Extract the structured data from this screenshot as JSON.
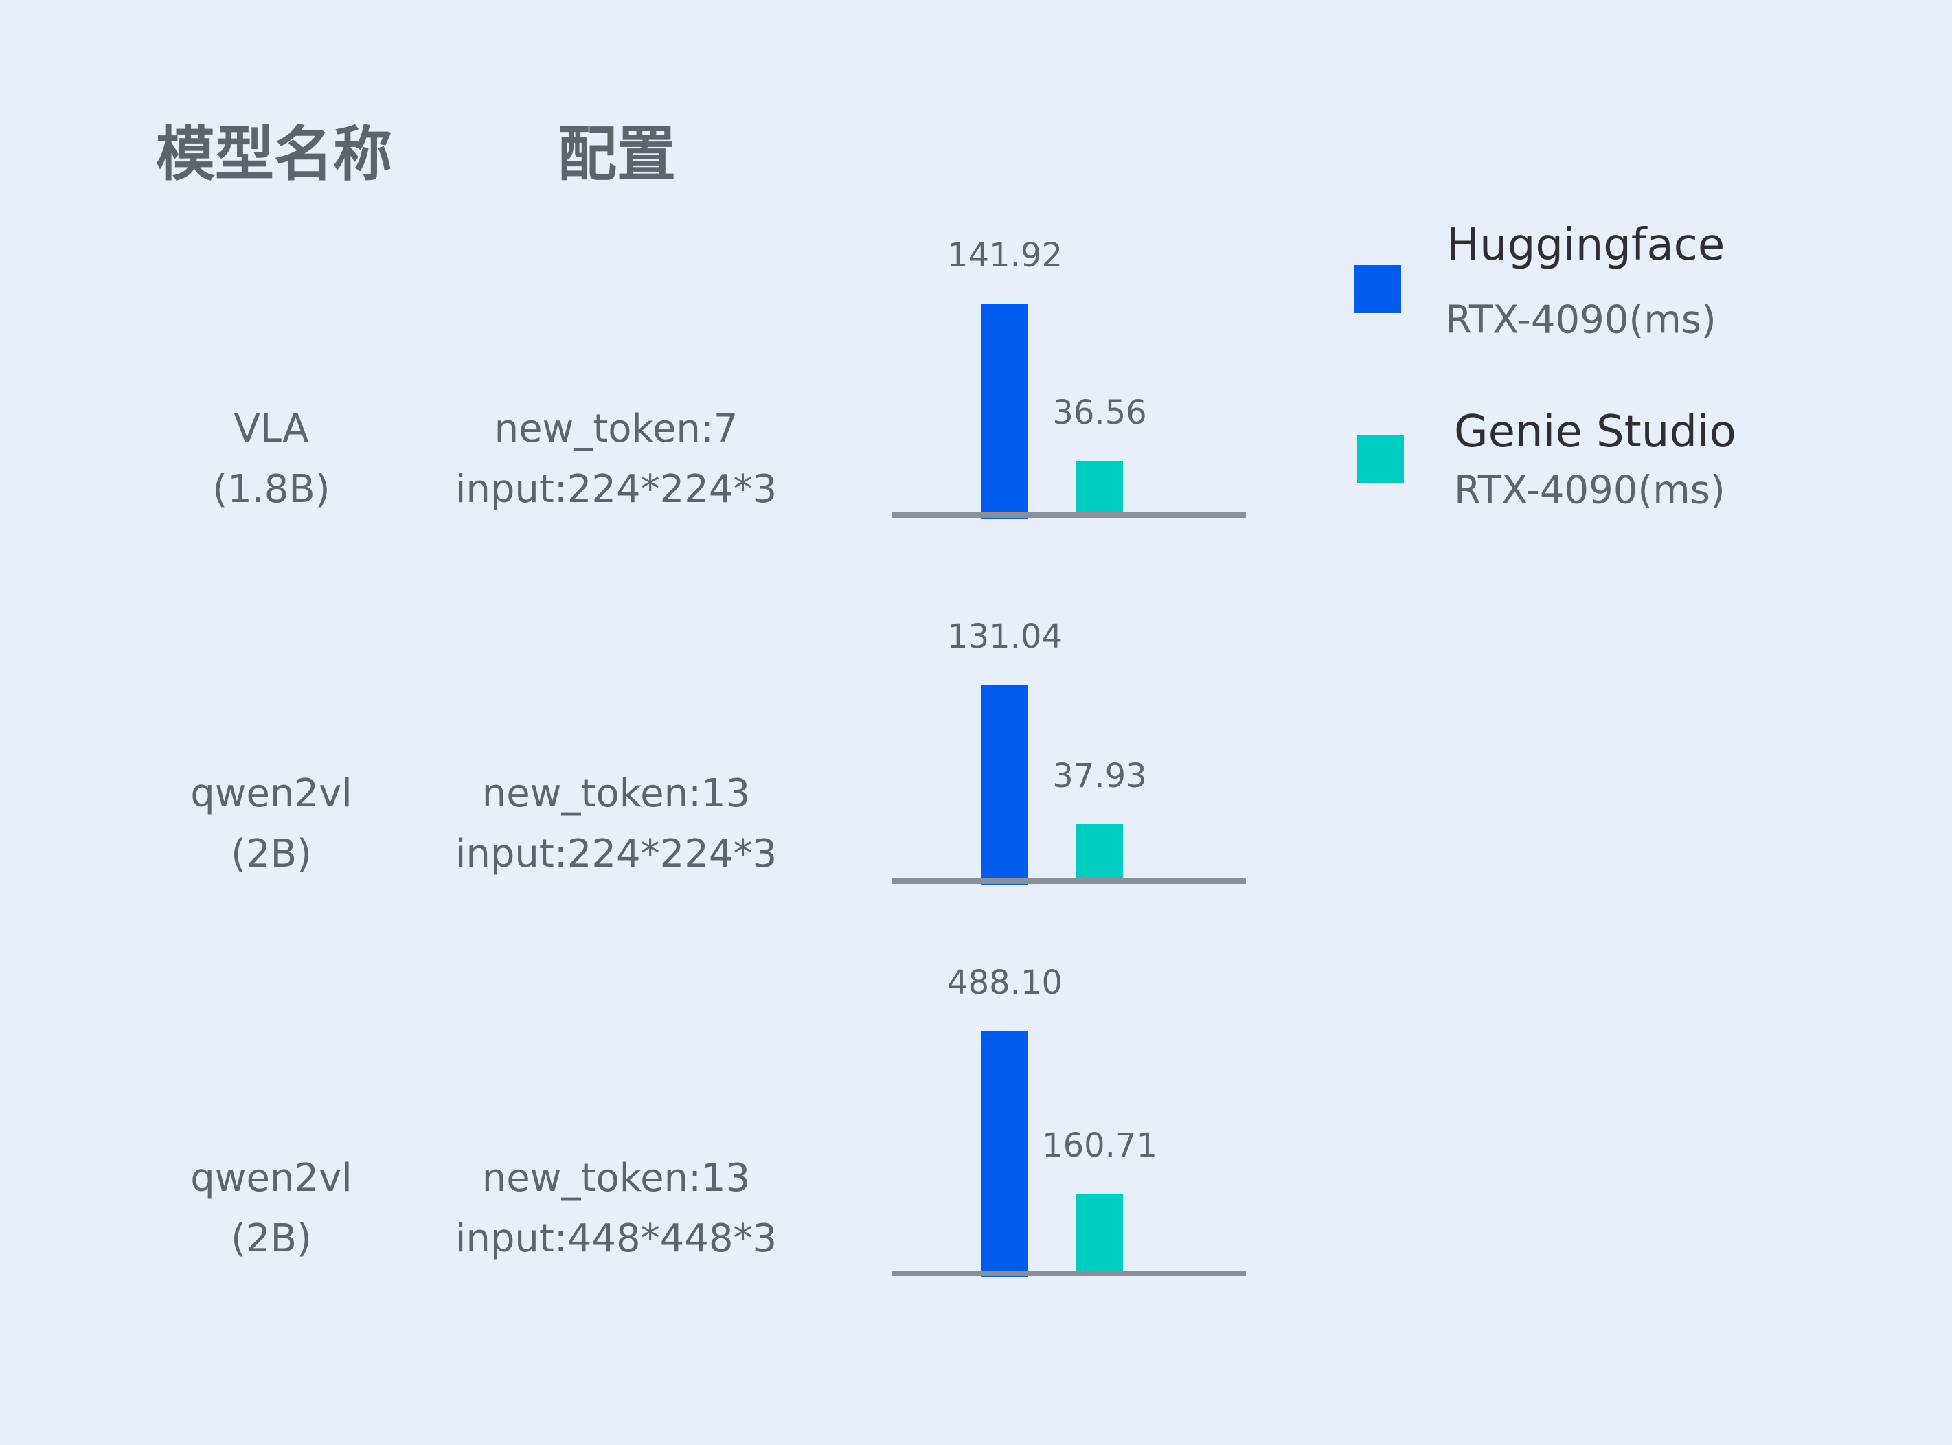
{
  "headers": {
    "model": "模型名称",
    "config": "配置"
  },
  "rows": [
    {
      "model_line1": "VLA",
      "model_line2": "(1.8B)",
      "config_line1": "new_token:7",
      "config_line2": "input:224*224*3"
    },
    {
      "model_line1": "qwen2vl",
      "model_line2": "(2B)",
      "config_line1": "new_token:13",
      "config_line2": "input:224*224*3"
    },
    {
      "model_line1": "qwen2vl",
      "model_line2": "(2B)",
      "config_line1": "new_token:13",
      "config_line2": "input:448*448*3"
    }
  ],
  "legend": [
    {
      "name": "Huggingface",
      "sub": "RTX-4090(ms)",
      "color": "#005ced"
    },
    {
      "name": "Genie Studio",
      "sub": "RTX-4090(ms)",
      "color": "#00cdc1"
    }
  ],
  "chart_data": {
    "type": "bar",
    "categories": [
      "VLA (1.8B) new_token:7 input:224*224*3",
      "qwen2vl (2B) new_token:13 input:224*224*3",
      "qwen2vl (2B) new_token:13 input:448*448*3"
    ],
    "series": [
      {
        "name": "Huggingface RTX-4090(ms)",
        "values": [
          141.92,
          131.04,
          488.1
        ],
        "labels": [
          "141.92",
          "131.04",
          "488.10"
        ],
        "color": "#005ced"
      },
      {
        "name": "Genie Studio RTX-4090(ms)",
        "values": [
          36.56,
          37.93,
          160.71
        ],
        "labels": [
          "36.56",
          "37.93",
          "160.71"
        ],
        "color": "#00cdc1"
      }
    ],
    "axis_color": "#8a8f9b",
    "grid": false,
    "legend_placement": "top-right"
  }
}
